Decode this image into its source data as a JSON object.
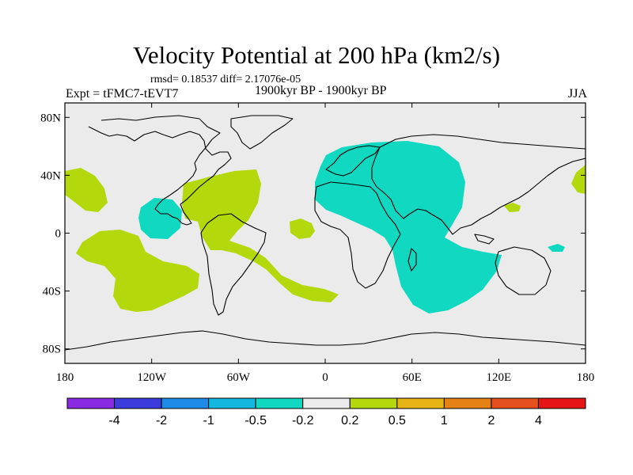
{
  "header": {
    "title": "Velocity Potential at 200 hPa (km2/s)",
    "stats": "rmsd= 0.18537 diff= 2.17076e-05",
    "left_label": "Expt = tFMC7-tEVT7",
    "center_label": "1900kyr BP - 1900kyr BP",
    "right_label": "JJA"
  },
  "map": {
    "background_color": "#ebebeb",
    "lat_ticks": [
      {
        "value": 80,
        "label": "80N"
      },
      {
        "value": 40,
        "label": "40N"
      },
      {
        "value": 0,
        "label": "0"
      },
      {
        "value": -40,
        "label": "40S"
      },
      {
        "value": -80,
        "label": "80S"
      }
    ],
    "lon_ticks": [
      {
        "value": -180,
        "label": "180"
      },
      {
        "value": -120,
        "label": "120W"
      },
      {
        "value": -60,
        "label": "60W"
      },
      {
        "value": 0,
        "label": "0"
      },
      {
        "value": 60,
        "label": "60E"
      },
      {
        "value": 120,
        "label": "120E"
      },
      {
        "value": 180,
        "label": "180"
      }
    ],
    "regions": [
      {
        "name": "negative-anomaly-eurasia-indian-ocean",
        "color": "#11d8c0"
      },
      {
        "name": "negative-anomaly-east-pacific",
        "color": "#11d8c0"
      },
      {
        "name": "negative-anomaly-west-pacific",
        "color": "#11d8c0"
      },
      {
        "name": "positive-anomaly-north-pacific",
        "color": "#b3d80b"
      },
      {
        "name": "positive-anomaly-atlantic",
        "color": "#b3d80b"
      },
      {
        "name": "positive-anomaly-south-pacific",
        "color": "#b3d80b"
      },
      {
        "name": "positive-anomaly-africa",
        "color": "#b3d80b"
      },
      {
        "name": "positive-anomaly-dateline",
        "color": "#b3d80b"
      }
    ]
  },
  "colorbar": {
    "boxes": [
      "#8a2be2",
      "#3c3cdc",
      "#1e8ce6",
      "#13b8e0",
      "#11d8c0",
      "#ebebeb",
      "#b3d80b",
      "#e6b414",
      "#e68214",
      "#e6501e",
      "#e61414"
    ],
    "labels": [
      "-4",
      "-2",
      "-1",
      "-0.5",
      "-0.2",
      "0.2",
      "0.5",
      "1",
      "2",
      "4"
    ]
  }
}
